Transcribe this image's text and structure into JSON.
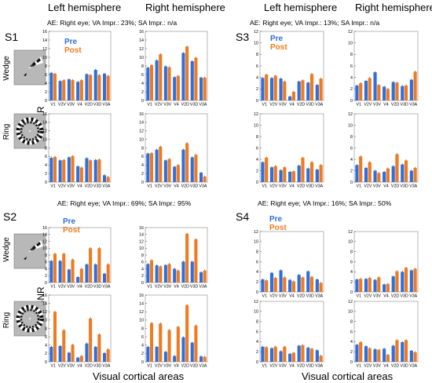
{
  "headers": {
    "left_hemisphere": "Left hemisphere",
    "right_hemisphere": "Right hemisphere"
  },
  "xlabel": "Visual cortical areas",
  "ylabel": "SNR",
  "stimuli": {
    "wedge": "Wedge",
    "ring": "Ring"
  },
  "legend": {
    "pre": "Pre",
    "post": "Post"
  },
  "colors": {
    "pre": "#2f6fdc",
    "post": "#f07a1f",
    "axis": "#444444",
    "frame": "#888888"
  },
  "areas": [
    "V1",
    "V2V",
    "V3V",
    "V4",
    "V2D",
    "V3D",
    "V3A"
  ],
  "yticks": [
    0,
    2,
    4,
    6,
    8,
    10,
    12,
    14,
    16
  ],
  "subjects": [
    {
      "id": "S1",
      "info": "AE: Right eye;  VA Impr.:  23%; SA Impr.: n/a",
      "ylim": [
        0,
        16
      ]
    },
    {
      "id": "S2",
      "info": "AE: Right eye;  VA Impr.:  69%; SA Impr.: 95%",
      "ylim": [
        0,
        16
      ]
    },
    {
      "id": "S3",
      "info": "AE: Right eye;  VA Impr.:  13%; SA Impr.: n/a",
      "ylim": [
        0,
        12
      ]
    },
    {
      "id": "S4",
      "info": "AE: Right eye;  VA Impr.: 16%; SA Impr.: 50%",
      "ylim": [
        0,
        12
      ]
    }
  ],
  "chart_data": [
    {
      "type": "bar",
      "subject": "S1",
      "stimulus": "Wedge",
      "hemisphere": "Left hemisphere",
      "categories": [
        "V1",
        "V2V",
        "V3V",
        "V4",
        "V2D",
        "V3D",
        "V3A"
      ],
      "ylim": [
        0,
        16
      ],
      "series": [
        {
          "name": "Pre",
          "values": [
            6.4,
            4.5,
            4.9,
            4.3,
            6.1,
            7.1,
            6.2
          ]
        },
        {
          "name": "Post",
          "values": [
            6.2,
            4.7,
            4.7,
            4.7,
            5.9,
            5.9,
            5.7
          ]
        }
      ]
    },
    {
      "type": "bar",
      "subject": "S1",
      "stimulus": "Wedge",
      "hemisphere": "Right hemisphere",
      "categories": [
        "V1",
        "V2V",
        "V3V",
        "V4",
        "V2D",
        "V3D",
        "V3A"
      ],
      "ylim": [
        0,
        16
      ],
      "series": [
        {
          "name": "Pre",
          "values": [
            7.6,
            9.3,
            7.9,
            5.4,
            11.0,
            9.1,
            5.3
          ]
        },
        {
          "name": "Post",
          "values": [
            8.2,
            10.7,
            7.7,
            5.7,
            12.5,
            9.9,
            5.3
          ]
        }
      ]
    },
    {
      "type": "bar",
      "subject": "S1",
      "stimulus": "Ring",
      "hemisphere": "Left hemisphere",
      "categories": [
        "V1",
        "V2V",
        "V3V",
        "V4",
        "V2D",
        "V3D",
        "V3A"
      ],
      "ylim": [
        0,
        16
      ],
      "series": [
        {
          "name": "Pre",
          "values": [
            5.7,
            5.1,
            5.8,
            3.7,
            5.6,
            5.2,
            1.6
          ]
        },
        {
          "name": "Post",
          "values": [
            5.9,
            5.2,
            6.1,
            3.4,
            5.1,
            5.3,
            1.2
          ]
        }
      ]
    },
    {
      "type": "bar",
      "subject": "S1",
      "stimulus": "Ring",
      "hemisphere": "Right hemisphere",
      "categories": [
        "V1",
        "V2V",
        "V3V",
        "V4",
        "V2D",
        "V3D",
        "V3A"
      ],
      "ylim": [
        0,
        16
      ],
      "series": [
        {
          "name": "Pre",
          "values": [
            6.7,
            7.6,
            5.1,
            3.6,
            7.6,
            5.8,
            2.2
          ]
        },
        {
          "name": "Post",
          "values": [
            6.8,
            8.3,
            5.4,
            4.0,
            9.1,
            6.4,
            1.3
          ]
        }
      ]
    },
    {
      "type": "bar",
      "subject": "S2",
      "stimulus": "Wedge",
      "hemisphere": "Left hemisphere",
      "categories": [
        "V1",
        "V2V",
        "V3V",
        "V4",
        "V2D",
        "V3D",
        "V3A"
      ],
      "ylim": [
        0,
        16
      ],
      "series": [
        {
          "name": "Pre",
          "values": [
            6.3,
            6.3,
            3.8,
            1.6,
            5.3,
            5.3,
            2.6
          ]
        },
        {
          "name": "Post",
          "values": [
            8.4,
            8.4,
            6.7,
            4.0,
            10.0,
            10.0,
            5.3
          ]
        }
      ]
    },
    {
      "type": "bar",
      "subject": "S2",
      "stimulus": "Wedge",
      "hemisphere": "Right hemisphere",
      "categories": [
        "V1",
        "V2V",
        "V3V",
        "V4",
        "V2D",
        "V3D",
        "V3A"
      ],
      "ylim": [
        0,
        16
      ],
      "series": [
        {
          "name": "Pre",
          "values": [
            5.4,
            5.0,
            5.1,
            4.0,
            6.1,
            6.1,
            3.0
          ]
        },
        {
          "name": "Post",
          "values": [
            6.5,
            4.7,
            5.4,
            3.5,
            14.2,
            12.6,
            3.5
          ]
        }
      ]
    },
    {
      "type": "bar",
      "subject": "S2",
      "stimulus": "Ring",
      "hemisphere": "Left hemisphere",
      "categories": [
        "V1",
        "V2V",
        "V3V",
        "V4",
        "V2D",
        "V3D",
        "V3A"
      ],
      "ylim": [
        0,
        16
      ],
      "series": [
        {
          "name": "Pre",
          "values": [
            3.6,
            3.8,
            2.2,
            1.0,
            4.4,
            3.6,
            2.1
          ]
        },
        {
          "name": "Post",
          "values": [
            12.0,
            7.6,
            4.1,
            1.4,
            10.4,
            6.6,
            3.0
          ]
        }
      ]
    },
    {
      "type": "bar",
      "subject": "S2",
      "stimulus": "Ring",
      "hemisphere": "Right hemisphere",
      "categories": [
        "V1",
        "V2V",
        "V3V",
        "V4",
        "V2D",
        "V3D",
        "V3A"
      ],
      "ylim": [
        0,
        16
      ],
      "series": [
        {
          "name": "Pre",
          "values": [
            3.6,
            3.6,
            2.4,
            1.4,
            5.9,
            4.6,
            1.3
          ]
        },
        {
          "name": "Post",
          "values": [
            9.3,
            9.2,
            7.6,
            8.4,
            13.6,
            8.7,
            1.2
          ]
        }
      ]
    },
    {
      "type": "bar",
      "subject": "S3",
      "stimulus": "Wedge",
      "hemisphere": "Left hemisphere",
      "categories": [
        "V1",
        "V2V",
        "V3V",
        "V4",
        "V2D",
        "V3D",
        "V3A"
      ],
      "ylim": [
        0,
        12
      ],
      "series": [
        {
          "name": "Pre",
          "values": [
            3.9,
            3.9,
            3.8,
            0.7,
            3.3,
            3.1,
            2.7
          ]
        },
        {
          "name": "Post",
          "values": [
            4.5,
            4.3,
            3.3,
            1.5,
            3.5,
            4.6,
            3.8
          ]
        }
      ]
    },
    {
      "type": "bar",
      "subject": "S3",
      "stimulus": "Wedge",
      "hemisphere": "Right hemisphere",
      "categories": [
        "V1",
        "V2V",
        "V3V",
        "V4",
        "V2D",
        "V3D",
        "V3A"
      ],
      "ylim": [
        0,
        12
      ],
      "series": [
        {
          "name": "Pre",
          "values": [
            2.6,
            3.4,
            4.9,
            2.4,
            3.2,
            2.5,
            3.6
          ]
        },
        {
          "name": "Post",
          "values": [
            3.0,
            3.9,
            2.7,
            2.0,
            3.1,
            2.6,
            5.0
          ]
        }
      ]
    },
    {
      "type": "bar",
      "subject": "S3",
      "stimulus": "Ring",
      "hemisphere": "Left hemisphere",
      "categories": [
        "V1",
        "V2V",
        "V3V",
        "V4",
        "V2D",
        "V3D",
        "V3A"
      ],
      "ylim": [
        0,
        12
      ],
      "series": [
        {
          "name": "Pre",
          "values": [
            3.5,
            2.6,
            2.1,
            1.8,
            2.9,
            2.4,
            2.2
          ]
        },
        {
          "name": "Post",
          "values": [
            4.3,
            2.8,
            2.6,
            1.9,
            4.3,
            3.5,
            3.0
          ]
        }
      ]
    },
    {
      "type": "bar",
      "subject": "S3",
      "stimulus": "Ring",
      "hemisphere": "Right hemisphere",
      "categories": [
        "V1",
        "V2V",
        "V3V",
        "V4",
        "V2D",
        "V3D",
        "V3A"
      ],
      "ylim": [
        0,
        12
      ],
      "series": [
        {
          "name": "Pre",
          "values": [
            3.0,
            2.5,
            2.0,
            1.8,
            2.8,
            3.1,
            2.0
          ]
        },
        {
          "name": "Post",
          "values": [
            4.5,
            3.5,
            1.6,
            2.4,
            4.9,
            3.8,
            2.5
          ]
        }
      ]
    },
    {
      "type": "bar",
      "subject": "S4",
      "stimulus": "Wedge",
      "hemisphere": "Left hemisphere",
      "categories": [
        "V1",
        "V2V",
        "V3V",
        "V4",
        "V2D",
        "V3D",
        "V3A"
      ],
      "ylim": [
        0,
        12
      ],
      "series": [
        {
          "name": "Pre",
          "values": [
            2.5,
            3.8,
            4.3,
            2.4,
            3.4,
            4.1,
            2.5
          ]
        },
        {
          "name": "Post",
          "values": [
            2.3,
            2.8,
            2.9,
            2.1,
            2.9,
            3.0,
            1.8
          ]
        }
      ]
    },
    {
      "type": "bar",
      "subject": "S4",
      "stimulus": "Wedge",
      "hemisphere": "Right hemisphere",
      "categories": [
        "V1",
        "V2V",
        "V3V",
        "V4",
        "V2D",
        "V3D",
        "V3A"
      ],
      "ylim": [
        0,
        12
      ],
      "series": [
        {
          "name": "Pre",
          "values": [
            2.5,
            2.6,
            2.4,
            1.5,
            3.1,
            4.0,
            4.3
          ]
        },
        {
          "name": "Post",
          "values": [
            2.6,
            2.8,
            2.9,
            1.6,
            4.1,
            4.8,
            4.6
          ]
        }
      ]
    },
    {
      "type": "bar",
      "subject": "S4",
      "stimulus": "Ring",
      "hemisphere": "Left hemisphere",
      "categories": [
        "V1",
        "V2V",
        "V3V",
        "V4",
        "V2D",
        "V3D",
        "V3A"
      ],
      "ylim": [
        0,
        12
      ],
      "series": [
        {
          "name": "Pre",
          "values": [
            3.0,
            2.7,
            2.1,
            1.6,
            3.2,
            2.8,
            2.3
          ]
        },
        {
          "name": "Post",
          "values": [
            2.9,
            3.0,
            3.0,
            1.8,
            3.3,
            2.6,
            1.2
          ]
        }
      ]
    },
    {
      "type": "bar",
      "subject": "S4",
      "stimulus": "Ring",
      "hemisphere": "Right hemisphere",
      "categories": [
        "V1",
        "V2V",
        "V3V",
        "V4",
        "V2D",
        "V3D",
        "V3A"
      ],
      "ylim": [
        0,
        12
      ],
      "series": [
        {
          "name": "Pre",
          "values": [
            3.4,
            3.1,
            2.5,
            2.6,
            3.2,
            3.9,
            2.2
          ]
        },
        {
          "name": "Post",
          "values": [
            3.9,
            2.7,
            2.4,
            1.4,
            4.3,
            4.3,
            1.9
          ]
        }
      ]
    }
  ]
}
